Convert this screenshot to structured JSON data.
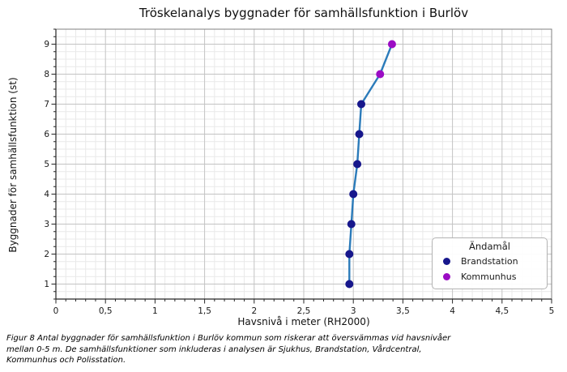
{
  "chart_data": {
    "type": "line",
    "title": "Tröskelanalys byggnader för samhällsfunktion i Burlöv",
    "xlabel": "Havsnivå i meter (RH2000)",
    "ylabel": "Byggnader för samhällsfunktion (st)",
    "xlim": [
      0,
      5
    ],
    "ylim": [
      0.5,
      9.5
    ],
    "x_ticks": [
      0,
      0.5,
      1,
      1.5,
      2,
      2.5,
      3,
      3.5,
      4,
      4.5,
      5
    ],
    "x_tick_labels": [
      "0",
      "0,5",
      "1",
      "1,5",
      "2",
      "2,5",
      "3",
      "3,5",
      "4",
      "4,5",
      "5"
    ],
    "y_ticks": [
      1,
      2,
      3,
      4,
      5,
      6,
      7,
      8,
      9
    ],
    "y_tick_labels": [
      "1",
      "2",
      "3",
      "4",
      "5",
      "6",
      "7",
      "8",
      "9"
    ],
    "x_minor_step": 0.1,
    "y_minor_step": 0.25,
    "grid": "major+minor",
    "line_color": "#2b7bba",
    "series": [
      {
        "name": "Brandstation",
        "color": "#17178c",
        "points": [
          [
            2.96,
            1
          ],
          [
            2.96,
            2
          ],
          [
            2.98,
            3
          ],
          [
            3.0,
            4
          ],
          [
            3.04,
            5
          ],
          [
            3.06,
            6
          ],
          [
            3.08,
            7
          ]
        ]
      },
      {
        "name": "Kommunhus",
        "color": "#9b0cc4",
        "points": [
          [
            3.27,
            8
          ],
          [
            3.39,
            9
          ]
        ]
      }
    ],
    "legend": {
      "title": "Ändamål",
      "position": "lower-right"
    }
  },
  "colors": {
    "grid_minor": "#e9e9e9",
    "grid_major": "#c3c3c3",
    "spine": "#808080",
    "axis_dark": "#262626",
    "tick_label": "#1a1a1a"
  },
  "caption_lines": [
    "Figur 8 Antal byggnader för samhällsfunktion i Burlöv kommun som riskerar att översvämmas vid havsnivåer",
    "mellan 0-5 m. De samhällsfunktioner som inkluderas i analysen är Sjukhus, Brandstation, Vårdcentral,",
    "Kommunhus och Polisstation."
  ]
}
